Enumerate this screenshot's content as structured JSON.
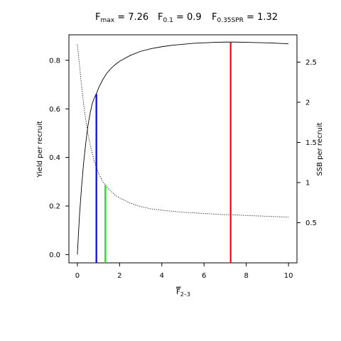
{
  "chart_data": {
    "type": "line",
    "title": {
      "fmax": {
        "symbol": "F",
        "sub": "max",
        "value": "7.26"
      },
      "f01": {
        "symbol": "F",
        "sub": "0.1",
        "value": "0.9"
      },
      "fspr": {
        "symbol": "F",
        "sub": "0.35SPR",
        "value": "1.32"
      }
    },
    "xlabel": {
      "symbol": "F",
      "sub": "2–3"
    },
    "ylabel_left": "Yield per recruit",
    "ylabel_right": "SSB per recruit",
    "xlim": [
      -0.4,
      10.4
    ],
    "ylim_left": [
      -0.034,
      0.905
    ],
    "ylim_right": [
      0.0,
      2.84
    ],
    "x_ticks": [
      0,
      2,
      4,
      6,
      8,
      10
    ],
    "y_left_ticks": [
      "0.0",
      "0.2",
      "0.4",
      "0.6",
      "0.8"
    ],
    "y_right_ticks": [
      "0.5",
      "1",
      "1.5",
      "2",
      "2.5"
    ],
    "series": [
      {
        "id": "ypr",
        "axis": "left",
        "style": "solid",
        "color": "#000000",
        "x": [
          0,
          0.1,
          0.2,
          0.3,
          0.4,
          0.5,
          0.6,
          0.7,
          0.8,
          0.9,
          1.0,
          1.2,
          1.4,
          1.6,
          1.8,
          2.0,
          2.5,
          3.0,
          3.5,
          4.0,
          4.5,
          5.0,
          5.5,
          6.0,
          6.5,
          7.0,
          7.26,
          7.5,
          8.0,
          8.5,
          9.0,
          9.5,
          10.0
        ],
        "y": [
          0.0,
          0.16,
          0.28,
          0.38,
          0.46,
          0.53,
          0.58,
          0.62,
          0.645,
          0.662,
          0.685,
          0.72,
          0.747,
          0.767,
          0.783,
          0.796,
          0.82,
          0.837,
          0.848,
          0.856,
          0.862,
          0.866,
          0.87,
          0.872,
          0.874,
          0.875,
          0.875,
          0.875,
          0.874,
          0.873,
          0.872,
          0.87,
          0.868
        ]
      },
      {
        "id": "spr",
        "axis": "right",
        "style": "dotted",
        "color": "#000000",
        "x": [
          0,
          0.1,
          0.2,
          0.3,
          0.4,
          0.5,
          0.6,
          0.7,
          0.8,
          0.9,
          1.0,
          1.2,
          1.32,
          1.5,
          1.8,
          2.0,
          2.5,
          3.0,
          3.5,
          4.0,
          5.0,
          6.0,
          7.0,
          7.26,
          8.0,
          9.0,
          10.0
        ],
        "y": [
          2.72,
          2.47,
          2.2,
          1.97,
          1.78,
          1.61,
          1.48,
          1.37,
          1.27,
          1.19,
          1.12,
          1.01,
          0.97,
          0.915,
          0.84,
          0.808,
          0.745,
          0.7,
          0.672,
          0.655,
          0.63,
          0.615,
          0.6,
          0.6,
          0.59,
          0.58,
          0.57
        ]
      }
    ],
    "reference_lines": [
      {
        "id": "f01",
        "x": 0.9,
        "axis": "left",
        "y_top": 0.662,
        "color": "#0000ff"
      },
      {
        "id": "fspr",
        "x": 1.32,
        "axis": "right",
        "y_top": 0.97,
        "color": "#00ff00"
      },
      {
        "id": "fmax",
        "x": 7.26,
        "axis": "left",
        "y_top": 0.875,
        "color": "#ff0000"
      }
    ]
  }
}
